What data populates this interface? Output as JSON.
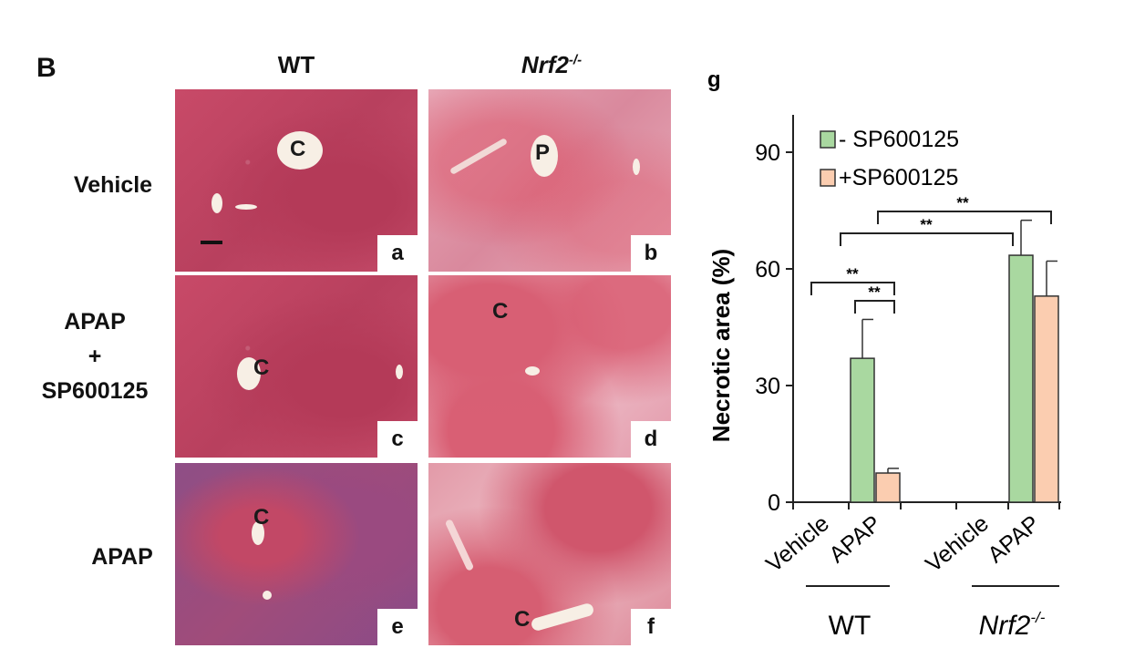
{
  "figure": {
    "panel_letter": "B",
    "column_headers": {
      "wt": "WT",
      "ko_base": "Nrf2",
      "ko_sup": "-/-"
    },
    "row_labels": {
      "vehicle": "Vehicle",
      "apap_sp_line1": "APAP",
      "apap_sp_line2": "+",
      "apap_sp_line3": "SP600125",
      "apap": "APAP"
    },
    "images": [
      {
        "letter": "a",
        "vessel_mark": "C",
        "scale_bar": true
      },
      {
        "letter": "b",
        "vessel_mark": "P"
      },
      {
        "letter": "c",
        "vessel_mark": "C"
      },
      {
        "letter": "d",
        "vessel_mark": "C"
      },
      {
        "letter": "e",
        "vessel_mark": "C"
      },
      {
        "letter": "f",
        "vessel_mark": "C"
      }
    ]
  },
  "chart_data": {
    "type": "bar",
    "panel_letter": "g",
    "ylabel": "Necrotic area (%)",
    "ylim": [
      0,
      90
    ],
    "yticks": [
      0,
      30,
      60,
      90
    ],
    "categories": [
      "Vehicle",
      "APAP",
      "Vehicle",
      "APAP"
    ],
    "groups": [
      {
        "label_base": "WT",
        "label_sup": ""
      },
      {
        "label_base": "Nrf2",
        "label_sup": "-/-"
      }
    ],
    "series": [
      {
        "name": "- SP600125",
        "color": "#a9d8a0",
        "values": [
          0,
          37,
          0,
          63.5
        ],
        "errors": [
          0,
          10,
          0,
          9
        ]
      },
      {
        "name": "+SP600125",
        "color": "#fbcdb0",
        "values": [
          0,
          7.5,
          0,
          53
        ],
        "errors": [
          0,
          1.2,
          0,
          9
        ]
      }
    ],
    "significance": [
      {
        "label": "**"
      },
      {
        "label": "**"
      },
      {
        "label": "**"
      },
      {
        "label": "**"
      }
    ],
    "legend_position": "top-left"
  }
}
